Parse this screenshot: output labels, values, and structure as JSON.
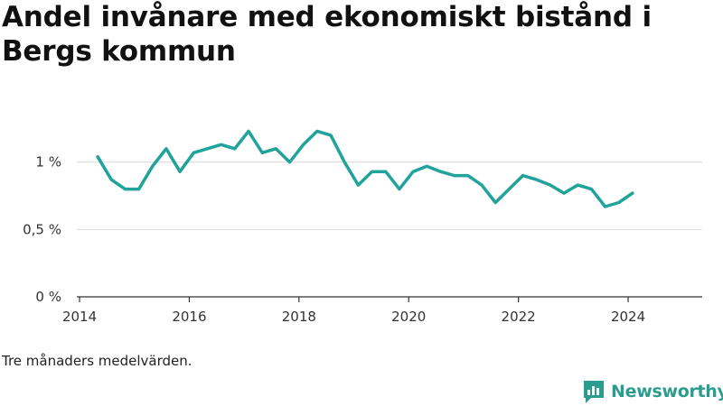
{
  "title": "Andel invånare med ekonomiskt bistånd i Bergs kommun",
  "note": "Tre månaders medelvärden.",
  "brand": {
    "name": "Newsworthy",
    "icon": "newsworthy-logo-icon",
    "color": "#2a9d8f"
  },
  "colors": {
    "line": "#1fa39a",
    "grid": "#d9d9d9",
    "axis": "#333333"
  },
  "chart_data": {
    "type": "line",
    "x_ticks": [
      2014,
      2016,
      2018,
      2020,
      2022,
      2024
    ],
    "x_tick_labels": [
      "2014",
      "2016",
      "2018",
      "2020",
      "2022",
      "2024"
    ],
    "y_ticks": [
      0,
      0.5,
      1
    ],
    "y_tick_labels": [
      "0 %",
      "0,5 %",
      "1 %"
    ],
    "xlim": [
      2013.95,
      2025.35
    ],
    "ylim": [
      0,
      1.4
    ],
    "grid": "horizontal",
    "series": [
      {
        "x": [
          2014.33,
          2014.58,
          2014.83,
          2015.08,
          2015.33,
          2015.58,
          2015.83,
          2016.08,
          2016.33,
          2016.58,
          2016.83,
          2017.08,
          2017.33,
          2017.58,
          2017.83,
          2018.08,
          2018.33,
          2018.58,
          2018.83,
          2019.08,
          2019.33,
          2019.58,
          2019.83,
          2020.08,
          2020.33,
          2020.58,
          2020.83,
          2021.08,
          2021.33,
          2021.58,
          2021.83,
          2022.08,
          2022.33,
          2022.58,
          2022.83,
          2023.08,
          2023.33,
          2023.58,
          2023.83,
          2024.08
        ],
        "values": [
          1.04,
          0.87,
          0.8,
          0.8,
          0.97,
          1.1,
          0.93,
          1.07,
          1.1,
          1.13,
          1.1,
          1.23,
          1.07,
          1.1,
          1.0,
          1.13,
          1.23,
          1.2,
          1.0,
          0.83,
          0.93,
          0.93,
          0.8,
          0.93,
          0.97,
          0.93,
          0.9,
          0.9,
          0.83,
          0.7,
          0.8,
          0.9,
          0.87,
          0.83,
          0.77,
          0.83,
          0.8,
          0.67,
          0.7,
          0.77
        ]
      }
    ]
  }
}
